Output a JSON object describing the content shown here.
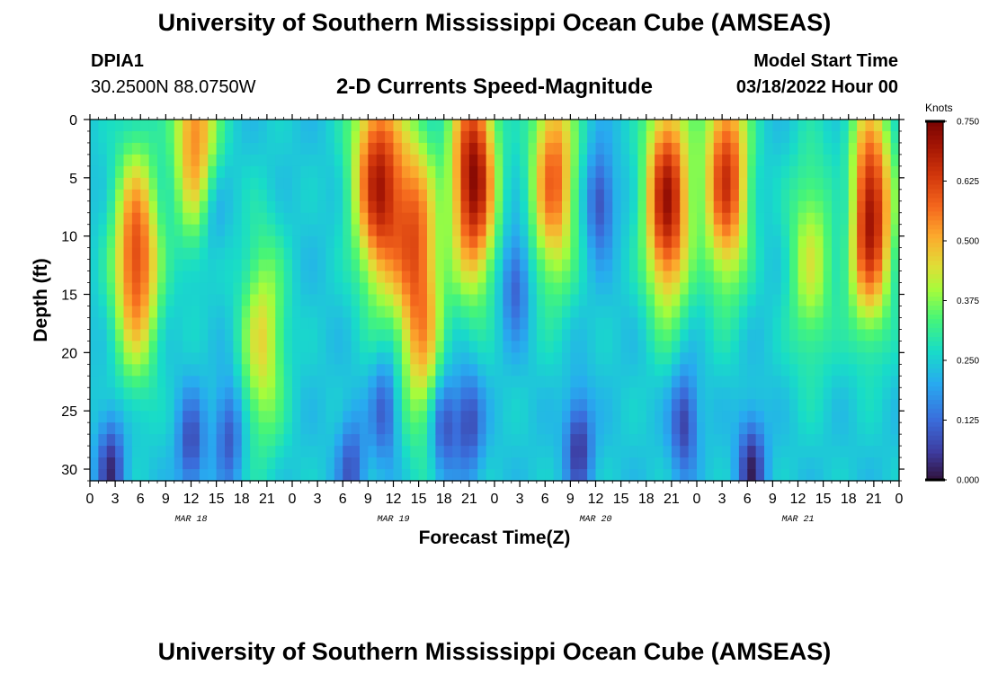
{
  "header": {
    "title": "University of Southern Mississippi Ocean Cube (AMSEAS)",
    "station_id": "DPIA1",
    "coordinates": "30.2500N  88.0750W",
    "subtitle": "2-D Currents Speed-Magnitude",
    "model_start_label": "Model Start Time",
    "model_start_value": "03/18/2022 Hour 00"
  },
  "footer": {
    "title": "University of Southern Mississippi Ocean Cube (AMSEAS)"
  },
  "chart_data": {
    "type": "heatmap",
    "title": "2-D Currents Speed-Magnitude",
    "xlabel": "Forecast Time(Z)",
    "ylabel": "Depth (ft)",
    "x_range_hours": [
      0,
      96
    ],
    "ylim": [
      0,
      31
    ],
    "x_tick_hours": [
      0,
      3,
      6,
      9,
      12,
      15,
      18,
      21,
      24,
      27,
      30,
      33,
      36,
      39,
      42,
      45,
      48,
      51,
      54,
      57,
      60,
      63,
      66,
      69,
      72,
      75,
      78,
      81,
      84,
      87,
      90,
      93,
      96
    ],
    "x_tick_labels": [
      "0",
      "3",
      "6",
      "9",
      "12",
      "15",
      "18",
      "21",
      "0",
      "3",
      "6",
      "9",
      "12",
      "15",
      "18",
      "21",
      "0",
      "3",
      "6",
      "9",
      "12",
      "15",
      "18",
      "21",
      "0",
      "3",
      "6",
      "9",
      "12",
      "15",
      "18",
      "21",
      "0"
    ],
    "date_labels": [
      {
        "hour": 12,
        "label": "MAR 18"
      },
      {
        "hour": 36,
        "label": "MAR 19"
      },
      {
        "hour": 60,
        "label": "MAR 20"
      },
      {
        "hour": 84,
        "label": "MAR 21"
      }
    ],
    "y_ticks": [
      0,
      5,
      10,
      15,
      20,
      25,
      30
    ],
    "y_tick_labels": [
      "0",
      "5",
      "10",
      "15",
      "20",
      "25",
      "30"
    ],
    "colorbar": {
      "label": "Knots",
      "min": 0.0,
      "max": 0.75,
      "ticks": [
        0.0,
        0.125,
        0.25,
        0.375,
        0.5,
        0.625,
        0.75
      ],
      "tick_labels": [
        "0.000",
        "0.125",
        "0.250",
        "0.375",
        "0.500",
        "0.625",
        "0.750"
      ]
    },
    "speed_maxima": [
      {
        "hour": 5.5,
        "depth": 12,
        "speed": 0.62
      },
      {
        "hour": 12.5,
        "depth": 1,
        "speed": 0.55
      },
      {
        "hour": 20.5,
        "depth": 19,
        "speed": 0.45
      },
      {
        "hour": 32.5,
        "depth": 3,
        "speed": 0.34
      },
      {
        "hour": 34.5,
        "depth": 6,
        "speed": 0.62
      },
      {
        "hour": 38.5,
        "depth": 9,
        "speed": 0.52
      },
      {
        "hour": 39.5,
        "depth": 19,
        "speed": 0.45
      },
      {
        "hour": 45.5,
        "depth": 5,
        "speed": 0.73
      },
      {
        "hour": 55,
        "depth": 5,
        "speed": 0.58
      },
      {
        "hour": 68.5,
        "depth": 7,
        "speed": 0.7
      },
      {
        "hour": 75.5,
        "depth": 5,
        "speed": 0.64
      },
      {
        "hour": 85.5,
        "depth": 12,
        "speed": 0.42
      },
      {
        "hour": 92.5,
        "depth": 8,
        "speed": 0.72
      }
    ],
    "speed_minima": [
      {
        "hour": 2.5,
        "depth": 30,
        "speed": 0.02
      },
      {
        "hour": 12,
        "depth": 28,
        "speed": 0.07
      },
      {
        "hour": 14.5,
        "depth": 8,
        "speed": 0.15
      },
      {
        "hour": 16.5,
        "depth": 27,
        "speed": 0.07
      },
      {
        "hour": 31,
        "depth": 30,
        "speed": 0.08
      },
      {
        "hour": 35,
        "depth": 25,
        "speed": 0.08
      },
      {
        "hour": 42,
        "depth": 26,
        "speed": 0.04
      },
      {
        "hour": 45,
        "depth": 26,
        "speed": 0.06
      },
      {
        "hour": 50.5,
        "depth": 14,
        "speed": 0.08
      },
      {
        "hour": 58,
        "depth": 28,
        "speed": 0.03
      },
      {
        "hour": 60.5,
        "depth": 7,
        "speed": 0.06
      },
      {
        "hour": 70.5,
        "depth": 26,
        "speed": 0.04
      },
      {
        "hour": 78.5,
        "depth": 30,
        "speed": 0.01
      },
      {
        "hour": 90,
        "depth": 7,
        "speed": 0.12
      }
    ]
  }
}
